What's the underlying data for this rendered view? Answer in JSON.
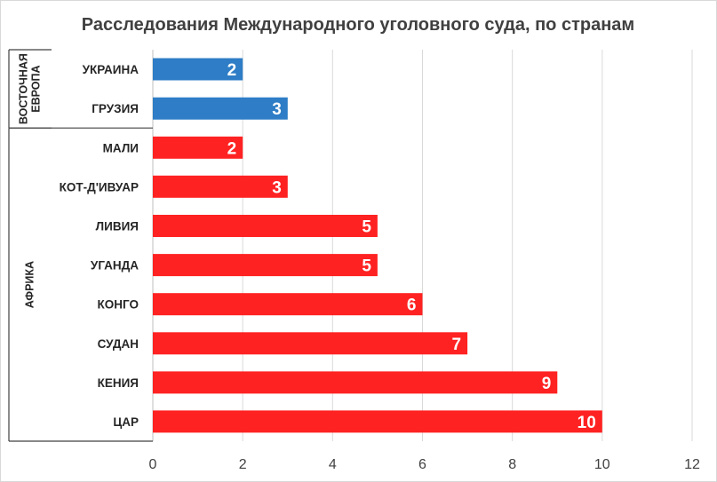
{
  "chart_data": {
    "type": "bar",
    "orientation": "horizontal",
    "title": "Расследования Международного уголовного суда, по странам",
    "xlabel": "",
    "ylabel": "",
    "xlim": [
      0,
      12
    ],
    "x_ticks": [
      0,
      2,
      4,
      6,
      8,
      10,
      12
    ],
    "grid": true,
    "legend": "none",
    "groups": [
      {
        "name": "ВОСТОЧНАЯ ЕВРОПА",
        "name_lines": [
          "ВОСТОЧНАЯ",
          "ЕВРОПА"
        ],
        "color": "#2e7dc6",
        "categories": [
          "УКРАИНА",
          "ГРУЗИЯ"
        ],
        "values": [
          2,
          3
        ]
      },
      {
        "name": "АФРИКА",
        "name_lines": [
          "АФРИКА"
        ],
        "color": "#ff2222",
        "categories": [
          "МАЛИ",
          "КОТ-Д'ИВУАР",
          "ЛИВИЯ",
          "УГАНДА",
          "КОНГО",
          "СУДАН",
          "КЕНИЯ",
          "ЦАР"
        ],
        "values": [
          2,
          3,
          5,
          5,
          6,
          7,
          9,
          10
        ]
      }
    ]
  }
}
